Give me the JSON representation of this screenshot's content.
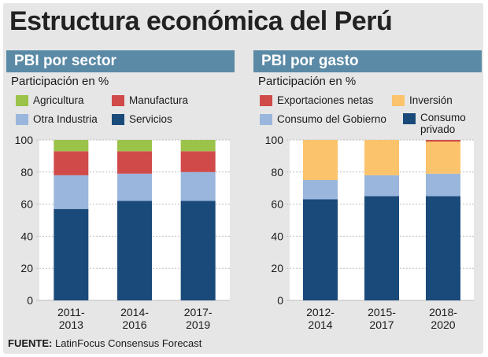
{
  "title": "Estructura económica del Perú",
  "source": {
    "label": "FUENTE:",
    "text": "LatinFocus Consensus Forecast"
  },
  "colors": {
    "agricultura": "#9bc34a",
    "manufactura": "#d04a4a",
    "otra_industria": "#9ab6dc",
    "servicios": "#1a4a7a",
    "exportaciones_netas": "#d04a4a",
    "inversion": "#fbc36b",
    "consumo_gobierno": "#9ab6dc",
    "consumo_privado": "#1a4a7a",
    "header": "#5b8aa6"
  },
  "left": {
    "header": "PBI por sector",
    "subtitle": "Participación en %",
    "legend": [
      {
        "label": "Agricultura",
        "color": "#9bc34a"
      },
      {
        "label": "Manufactura",
        "color": "#d04a4a"
      },
      {
        "label": "Otra Industria",
        "color": "#9ab6dc"
      },
      {
        "label": "Servicios",
        "color": "#1a4a7a"
      }
    ]
  },
  "right": {
    "header": "PBI por gasto",
    "subtitle": "Participación en %",
    "legend": [
      {
        "label": "Exportaciones netas",
        "color": "#d04a4a"
      },
      {
        "label": "Inversión",
        "color": "#fbc36b"
      },
      {
        "label": "Consumo del Gobierno",
        "color": "#9ab6dc"
      },
      {
        "label": "Consumo\nprivado",
        "color": "#1a4a7a"
      }
    ]
  },
  "chart_data": [
    {
      "type": "bar",
      "stacked": true,
      "title": "PBI por sector",
      "ylabel": "Participación en %",
      "ylim": [
        0,
        100
      ],
      "yticks": [
        0,
        20,
        40,
        60,
        80,
        100
      ],
      "categories": [
        "2011-\n2013",
        "2014-\n2016",
        "2017-\n2019"
      ],
      "series": [
        {
          "name": "Servicios",
          "color": "#1a4a7a",
          "values": [
            57,
            62,
            62
          ]
        },
        {
          "name": "Otra Industria",
          "color": "#9ab6dc",
          "values": [
            21,
            17,
            18
          ]
        },
        {
          "name": "Manufactura",
          "color": "#d04a4a",
          "values": [
            15,
            14,
            13
          ]
        },
        {
          "name": "Agricultura",
          "color": "#9bc34a",
          "values": [
            7,
            7,
            7
          ]
        }
      ],
      "grid": true,
      "legend": "top"
    },
    {
      "type": "bar",
      "stacked": true,
      "title": "PBI por gasto",
      "ylabel": "Participación en %",
      "ylim": [
        0,
        100
      ],
      "yticks": [
        0,
        20,
        40,
        60,
        80,
        100
      ],
      "categories": [
        "2012-\n2014",
        "2015-\n2017",
        "2018-\n2020"
      ],
      "series": [
        {
          "name": "Consumo privado",
          "color": "#1a4a7a",
          "values": [
            63,
            65,
            65
          ]
        },
        {
          "name": "Consumo del Gobierno",
          "color": "#9ab6dc",
          "values": [
            12,
            13,
            14
          ]
        },
        {
          "name": "Inversión",
          "color": "#fbc36b",
          "values": [
            25,
            22,
            20
          ]
        },
        {
          "name": "Exportaciones netas",
          "color": "#d04a4a",
          "values": [
            0,
            0,
            1
          ]
        }
      ],
      "grid": true,
      "legend": "top"
    }
  ]
}
